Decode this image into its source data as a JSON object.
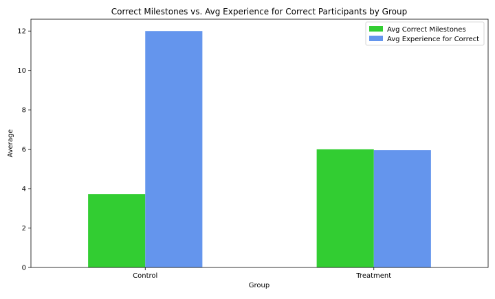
{
  "chart_data": {
    "type": "bar",
    "title": "Correct Milestones vs. Avg Experience for Correct Participants by Group",
    "xlabel": "Group",
    "ylabel": "Average",
    "categories": [
      "Control",
      "Treatment"
    ],
    "series": [
      {
        "name": "Avg Correct Milestones",
        "values": [
          3.72,
          6.0
        ],
        "color": "#32cd32"
      },
      {
        "name": "Avg Experience for Correct",
        "values": [
          12.0,
          5.95
        ],
        "color": "#6495ed"
      }
    ],
    "ylim": [
      0,
      12.6
    ],
    "yticks": [
      "0",
      "2",
      "4",
      "6",
      "8",
      "10",
      "12"
    ],
    "grid": false,
    "legend_position": "top-right"
  }
}
